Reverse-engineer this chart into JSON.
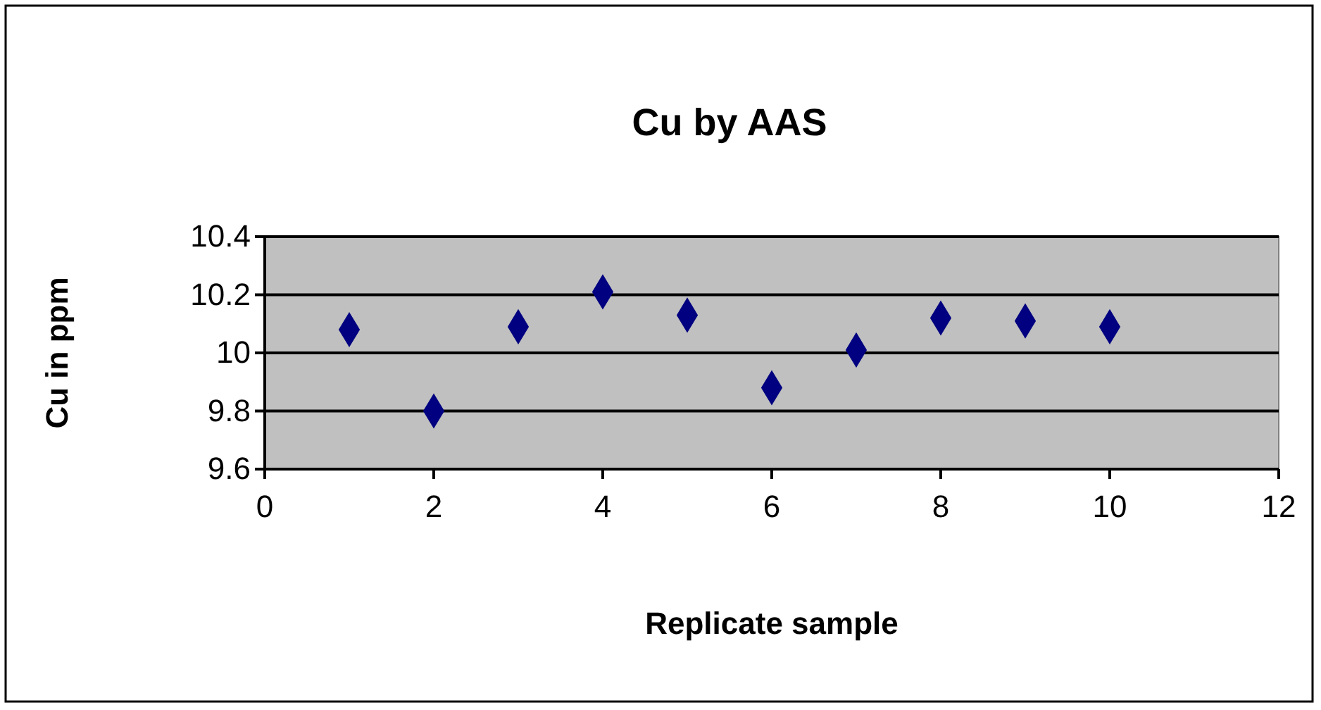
{
  "chart_data": {
    "type": "scatter",
    "title": "Cu by AAS",
    "xlabel": "Replicate sample",
    "ylabel": "Cu in ppm",
    "x": [
      1,
      2,
      3,
      4,
      5,
      6,
      7,
      8,
      9,
      10
    ],
    "series": [
      {
        "color": "#000080",
        "values": [
          10.08,
          9.8,
          10.09,
          10.21,
          10.13,
          9.88,
          10.01,
          10.12,
          10.11,
          10.09
        ]
      }
    ],
    "xlim": [
      0,
      12
    ],
    "xticks": [
      0,
      2,
      4,
      6,
      8,
      10,
      12
    ],
    "ylim": [
      9.6,
      10.4
    ],
    "yticks": [
      9.6,
      9.8,
      10,
      10.2,
      10.4
    ],
    "grid": "y",
    "marker": "diamond"
  }
}
